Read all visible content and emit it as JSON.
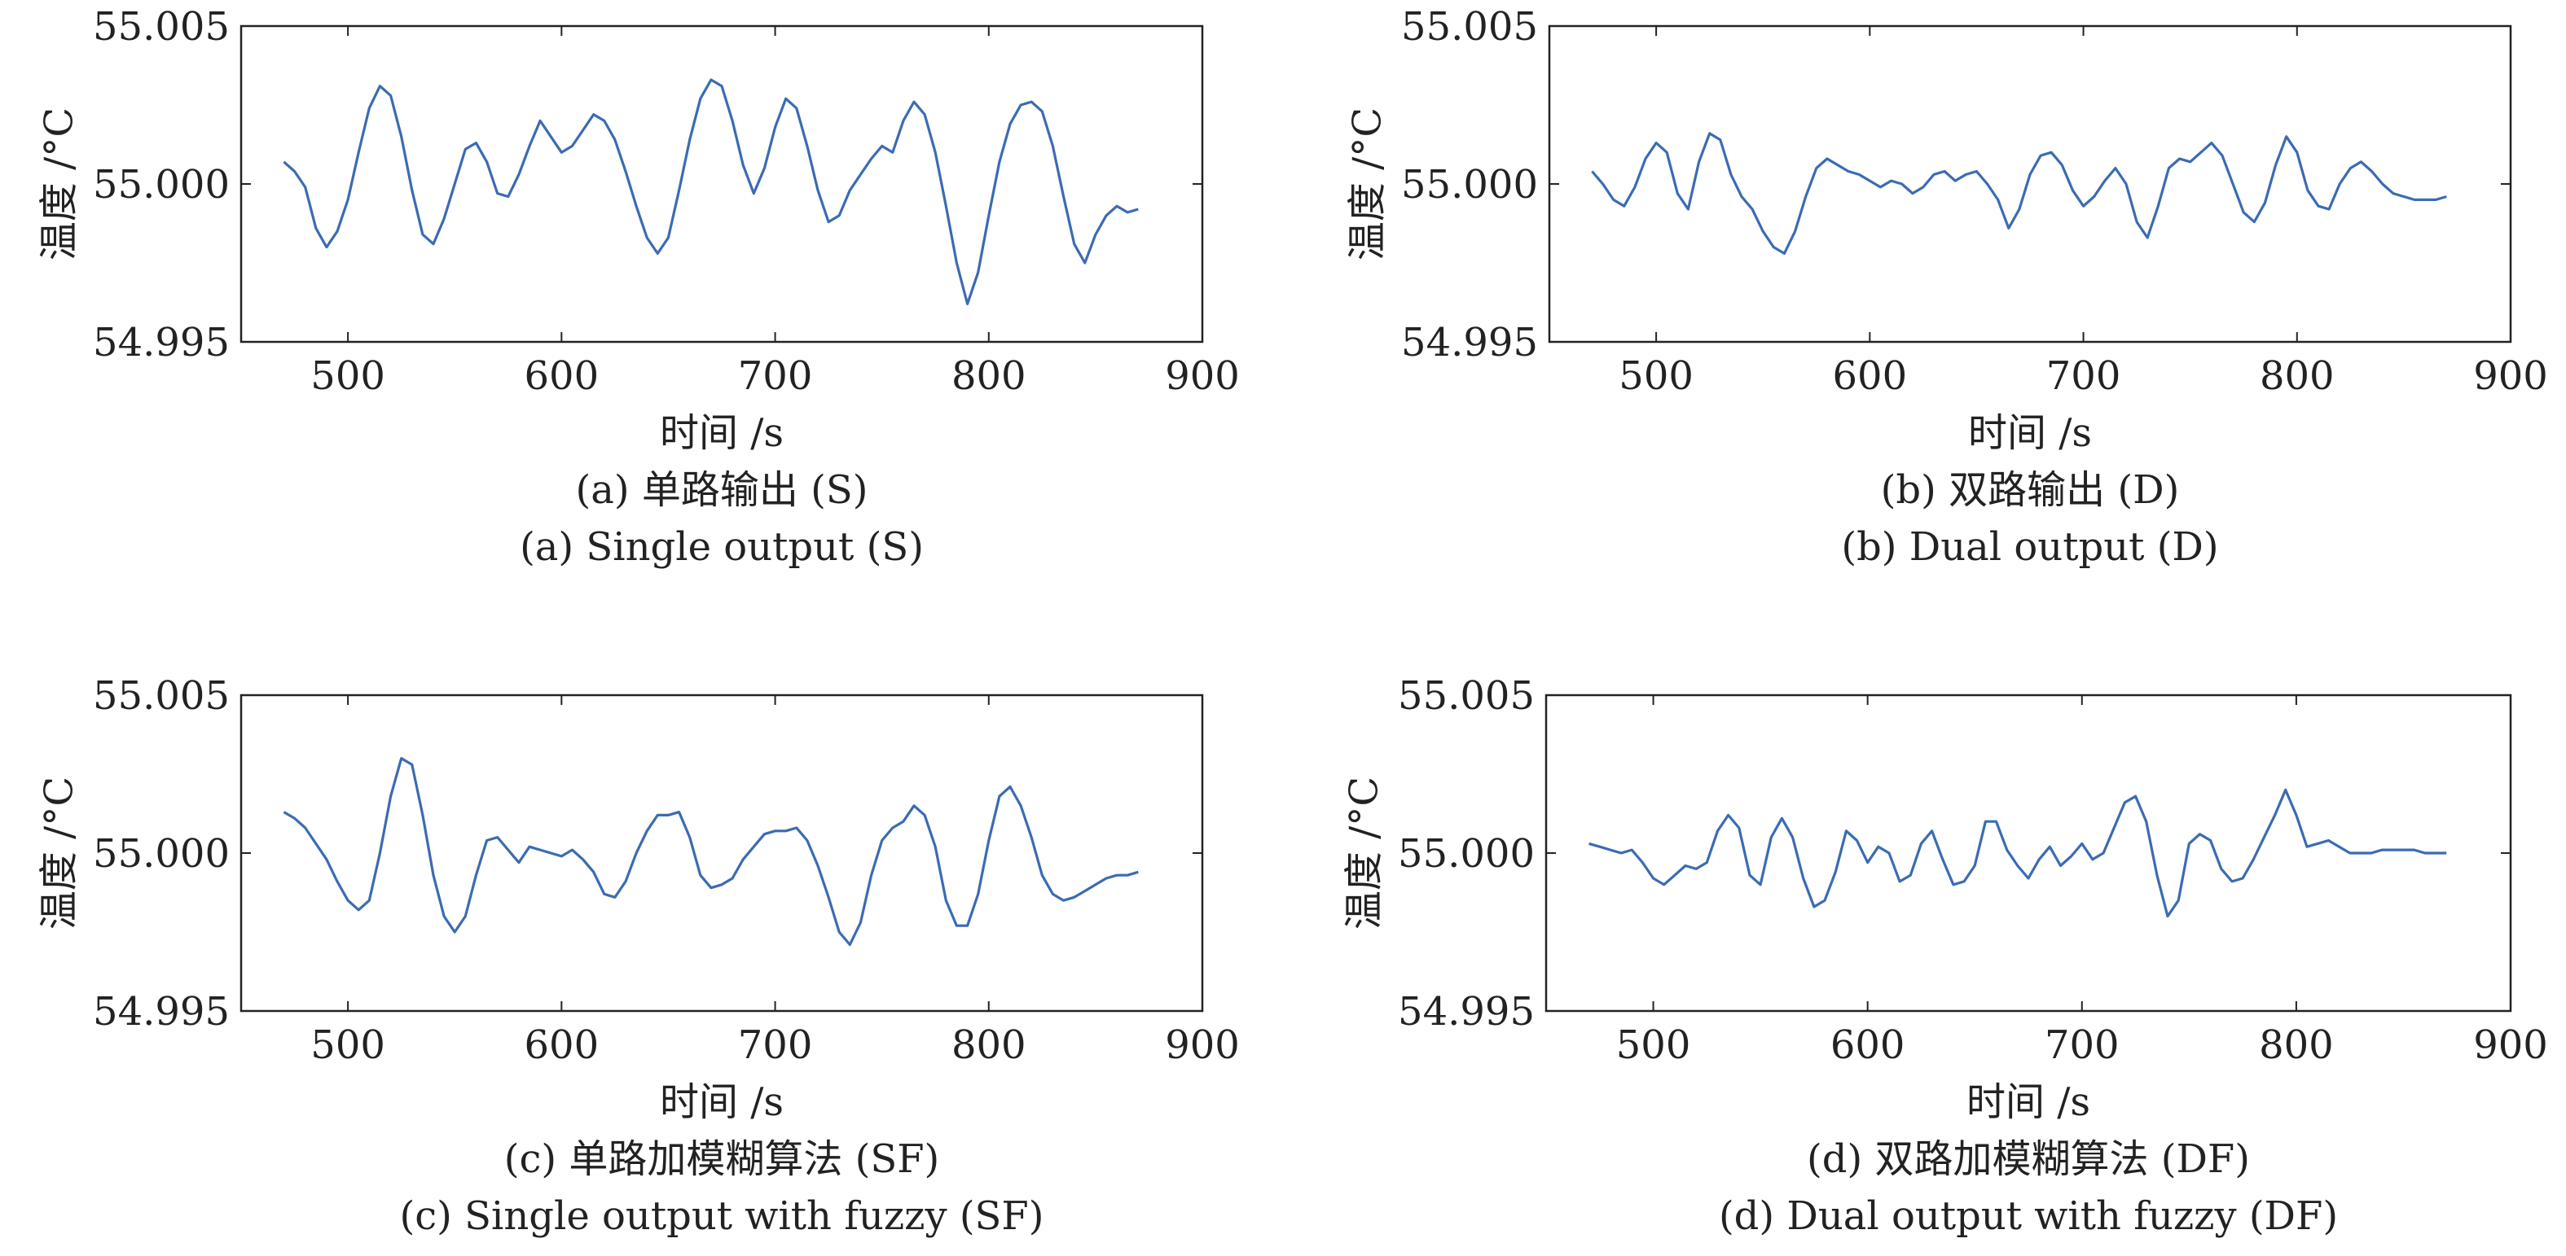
{
  "line_color": "#3b6bb3",
  "chart_data": [
    {
      "type": "line",
      "caption_cn": "(a) 单路输出 (S)",
      "caption_en": "(a) Single output (S)",
      "xlabel": "时间 /s",
      "ylabel": "温度 /°C",
      "xlim": [
        450,
        900
      ],
      "ylim": [
        54.995,
        55.005
      ],
      "xticks": [
        "500",
        "600",
        "700",
        "800",
        "900"
      ],
      "yticks": [
        "54.995",
        "55.000",
        "55.005"
      ],
      "series": [
        {
          "x": [
            470,
            475,
            480,
            485,
            490,
            495,
            500,
            505,
            510,
            515,
            520,
            525,
            530,
            535,
            540,
            545,
            550,
            555,
            560,
            565,
            570,
            575,
            580,
            585,
            590,
            595,
            600,
            605,
            610,
            615,
            620,
            625,
            630,
            635,
            640,
            645,
            650,
            655,
            660,
            665,
            670,
            675,
            680,
            685,
            690,
            695,
            700,
            705,
            710,
            715,
            720,
            725,
            730,
            735,
            740,
            745,
            750,
            755,
            760,
            765,
            770,
            775,
            780,
            785,
            790,
            795,
            800,
            805,
            810,
            815,
            820,
            825,
            830,
            835,
            840,
            845,
            850,
            855,
            860,
            865,
            870
          ],
          "y": [
            55.0007,
            55.0004,
            54.9999,
            54.9986,
            54.998,
            54.9985,
            54.9995,
            55.001,
            55.0024,
            55.0031,
            55.0028,
            55.0015,
            54.9998,
            54.9984,
            54.9981,
            54.9989,
            55.0,
            55.0011,
            55.0013,
            55.0007,
            54.9997,
            54.9996,
            55.0003,
            55.0012,
            55.002,
            55.0015,
            55.001,
            55.0012,
            55.0017,
            55.0022,
            55.002,
            55.0014,
            55.0004,
            54.9993,
            54.9983,
            54.9978,
            54.9983,
            54.9998,
            55.0014,
            55.0027,
            55.0033,
            55.0031,
            55.002,
            55.0006,
            54.9997,
            55.0005,
            55.0018,
            55.0027,
            55.0024,
            55.0012,
            54.9998,
            54.9988,
            54.999,
            54.9998,
            55.0003,
            55.0008,
            55.0012,
            55.001,
            55.002,
            55.0026,
            55.0022,
            55.001,
            54.9993,
            54.9975,
            54.9962,
            54.9972,
            54.999,
            55.0007,
            55.0019,
            55.0025,
            55.0026,
            55.0023,
            55.0012,
            54.9996,
            54.9981,
            54.9975,
            54.9984,
            54.999,
            54.9993,
            54.9991,
            54.9992
          ]
        }
      ]
    },
    {
      "type": "line",
      "caption_cn": "(b) 双路输出 (D)",
      "caption_en": "(b) Dual output (D)",
      "xlabel": "时间 /s",
      "ylabel": "温度 /°C",
      "xlim": [
        450,
        900
      ],
      "ylim": [
        54.995,
        55.005
      ],
      "xticks": [
        "500",
        "600",
        "700",
        "800",
        "900"
      ],
      "yticks": [
        "54.995",
        "55.000",
        "55.005"
      ],
      "series": [
        {
          "x": [
            470,
            475,
            480,
            485,
            490,
            495,
            500,
            505,
            510,
            515,
            520,
            525,
            530,
            535,
            540,
            545,
            550,
            555,
            560,
            565,
            570,
            575,
            580,
            585,
            590,
            595,
            600,
            605,
            610,
            615,
            620,
            625,
            630,
            635,
            640,
            645,
            650,
            655,
            660,
            665,
            670,
            675,
            680,
            685,
            690,
            695,
            700,
            705,
            710,
            715,
            720,
            725,
            730,
            735,
            740,
            745,
            750,
            755,
            760,
            765,
            770,
            775,
            780,
            785,
            790,
            795,
            800,
            805,
            810,
            815,
            820,
            825,
            830,
            835,
            840,
            845,
            850,
            855,
            860,
            865,
            870
          ],
          "y": [
            55.0004,
            55.0,
            54.9995,
            54.9993,
            54.9999,
            55.0008,
            55.0013,
            55.001,
            54.9997,
            54.9992,
            55.0007,
            55.0016,
            55.0014,
            55.0003,
            54.9996,
            54.9992,
            54.9985,
            54.998,
            54.9978,
            54.9985,
            54.9996,
            55.0005,
            55.0008,
            55.0006,
            55.0004,
            55.0003,
            55.0001,
            54.9999,
            55.0001,
            55.0,
            54.9997,
            54.9999,
            55.0003,
            55.0004,
            55.0001,
            55.0003,
            55.0004,
            55.0,
            54.9995,
            54.9986,
            54.9992,
            55.0003,
            55.0009,
            55.001,
            55.0006,
            54.9998,
            54.9993,
            54.9996,
            55.0001,
            55.0005,
            55.0,
            54.9988,
            54.9983,
            54.9993,
            55.0005,
            55.0008,
            55.0007,
            55.001,
            55.0013,
            55.0009,
            55.0,
            54.9991,
            54.9988,
            54.9994,
            55.0006,
            55.0015,
            55.001,
            54.9998,
            54.9993,
            54.9992,
            55.0,
            55.0005,
            55.0007,
            55.0004,
            55.0,
            54.9997,
            54.9996,
            54.9995,
            54.9995,
            54.9995,
            54.9996
          ]
        }
      ]
    },
    {
      "type": "line",
      "caption_cn": "(c) 单路加模糊算法 (SF)",
      "caption_en": "(c) Single output with fuzzy (SF)",
      "xlabel": "时间 /s",
      "ylabel": "温度 /°C",
      "xlim": [
        450,
        900
      ],
      "ylim": [
        54.995,
        55.005
      ],
      "xticks": [
        "500",
        "600",
        "700",
        "800",
        "900"
      ],
      "yticks": [
        "54.995",
        "55.000",
        "55.005"
      ],
      "series": [
        {
          "x": [
            470,
            475,
            480,
            485,
            490,
            495,
            500,
            505,
            510,
            515,
            520,
            525,
            530,
            535,
            540,
            545,
            550,
            555,
            560,
            565,
            570,
            575,
            580,
            585,
            590,
            595,
            600,
            605,
            610,
            615,
            620,
            625,
            630,
            635,
            640,
            645,
            650,
            655,
            660,
            665,
            670,
            675,
            680,
            685,
            690,
            695,
            700,
            705,
            710,
            715,
            720,
            725,
            730,
            735,
            740,
            745,
            750,
            755,
            760,
            765,
            770,
            775,
            780,
            785,
            790,
            795,
            800,
            805,
            810,
            815,
            820,
            825,
            830,
            835,
            840,
            845,
            850,
            855,
            860,
            865,
            870
          ],
          "y": [
            55.0013,
            55.0011,
            55.0008,
            55.0003,
            54.9998,
            54.9991,
            54.9985,
            54.9982,
            54.9985,
            55.0,
            55.0018,
            55.003,
            55.0028,
            55.0012,
            54.9993,
            54.998,
            54.9975,
            54.998,
            54.9993,
            55.0004,
            55.0005,
            55.0001,
            54.9997,
            55.0002,
            55.0001,
            55.0,
            54.9999,
            55.0001,
            54.9998,
            54.9994,
            54.9987,
            54.9986,
            54.9991,
            55.0,
            55.0007,
            55.0012,
            55.0012,
            55.0013,
            55.0005,
            54.9993,
            54.9989,
            54.999,
            54.9992,
            54.9998,
            55.0002,
            55.0006,
            55.0007,
            55.0007,
            55.0008,
            55.0004,
            54.9996,
            54.9986,
            54.9975,
            54.9971,
            54.9978,
            54.9993,
            55.0004,
            55.0008,
            55.001,
            55.0015,
            55.0012,
            55.0002,
            54.9985,
            54.9977,
            54.9977,
            54.9987,
            55.0004,
            55.0018,
            55.0021,
            55.0015,
            55.0005,
            54.9993,
            54.9987,
            54.9985,
            54.9986,
            54.9988,
            54.999,
            54.9992,
            54.9993,
            54.9993,
            54.9994
          ]
        }
      ]
    },
    {
      "type": "line",
      "caption_cn": "(d) 双路加模糊算法 (DF)",
      "caption_en": "(d) Dual output with fuzzy (DF)",
      "xlabel": "时间 /s",
      "ylabel": "温度 /°C",
      "xlim": [
        450,
        900
      ],
      "ylim": [
        54.995,
        55.005
      ],
      "xticks": [
        "500",
        "600",
        "700",
        "800",
        "900"
      ],
      "yticks": [
        "54.995",
        "55.000",
        "55.005"
      ],
      "series": [
        {
          "x": [
            470,
            475,
            480,
            485,
            490,
            495,
            500,
            505,
            510,
            515,
            520,
            525,
            530,
            535,
            540,
            545,
            550,
            555,
            560,
            565,
            570,
            575,
            580,
            585,
            590,
            595,
            600,
            605,
            610,
            615,
            620,
            625,
            630,
            635,
            640,
            645,
            650,
            655,
            660,
            665,
            670,
            675,
            680,
            685,
            690,
            695,
            700,
            705,
            710,
            715,
            720,
            725,
            730,
            735,
            740,
            745,
            750,
            755,
            760,
            765,
            770,
            775,
            780,
            785,
            790,
            795,
            800,
            805,
            810,
            815,
            820,
            825,
            830,
            835,
            840,
            845,
            850,
            855,
            860,
            865,
            870
          ],
          "y": [
            55.0003,
            55.0002,
            55.0001,
            55.0,
            55.0001,
            54.9997,
            54.9992,
            54.999,
            54.9993,
            54.9996,
            54.9995,
            54.9997,
            55.0007,
            55.0012,
            55.0008,
            54.9993,
            54.999,
            55.0005,
            55.0011,
            55.0005,
            54.9992,
            54.9983,
            54.9985,
            54.9994,
            55.0007,
            55.0004,
            54.9997,
            55.0002,
            55.0,
            54.9991,
            54.9993,
            55.0003,
            55.0007,
            54.9998,
            54.999,
            54.9991,
            54.9996,
            55.001,
            55.001,
            55.0001,
            54.9996,
            54.9992,
            54.9998,
            55.0002,
            54.9996,
            54.9999,
            55.0003,
            54.9998,
            55.0,
            55.0008,
            55.0016,
            55.0018,
            55.001,
            54.9993,
            54.998,
            54.9985,
            55.0003,
            55.0006,
            55.0004,
            54.9995,
            54.9991,
            54.9992,
            54.9998,
            55.0005,
            55.0012,
            55.002,
            55.0012,
            55.0002,
            55.0003,
            55.0004,
            55.0002,
            55.0,
            55.0,
            55.0,
            55.0001,
            55.0001,
            55.0001,
            55.0001,
            55.0,
            55.0,
            55.0
          ]
        }
      ]
    }
  ]
}
